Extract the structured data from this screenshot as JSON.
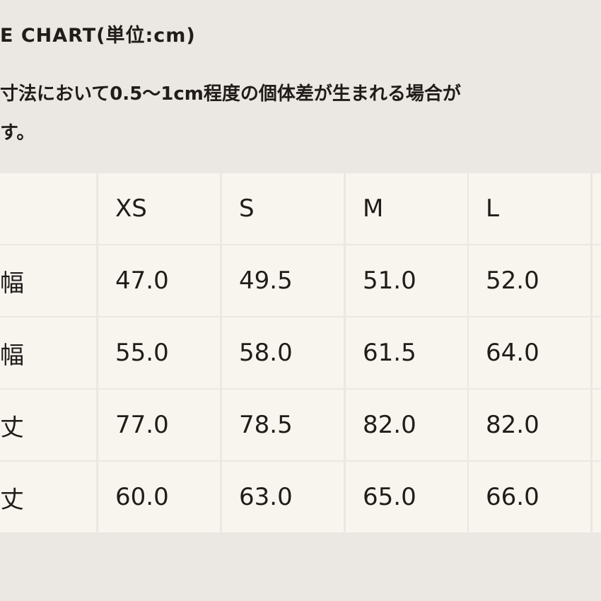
{
  "header": {
    "title": "E CHART(単位:cm)"
  },
  "note": {
    "lines": [
      "寸法において0.5〜1cm程度の個体差が生まれる場合が",
      "す。"
    ]
  },
  "table": {
    "columns": [
      "XS",
      "S",
      "M",
      "L"
    ],
    "rows": [
      {
        "label": "幅",
        "values": [
          "47.0",
          "49.5",
          "51.0",
          "52.0"
        ]
      },
      {
        "label": "幅",
        "values": [
          "55.0",
          "58.0",
          "61.5",
          "64.0"
        ]
      },
      {
        "label": "丈",
        "values": [
          "77.0",
          "78.5",
          "82.0",
          "82.0"
        ]
      },
      {
        "label": "丈",
        "values": [
          "60.0",
          "63.0",
          "65.0",
          "66.0"
        ]
      }
    ]
  }
}
